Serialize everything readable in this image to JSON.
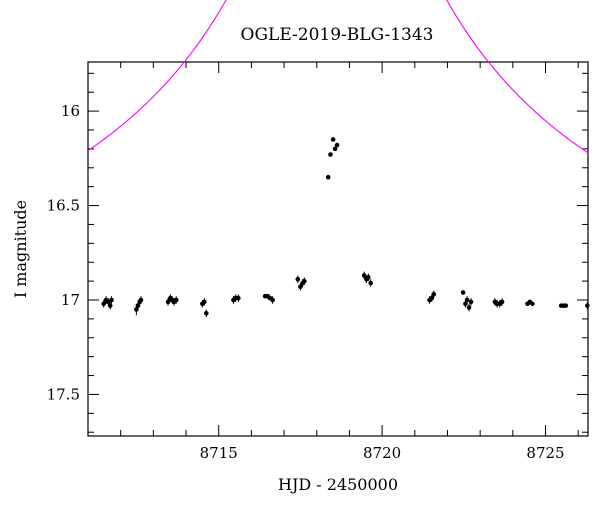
{
  "chart_data": {
    "type": "scatter",
    "title": "OGLE-2019-BLG-1343",
    "xlabel": "HJD - 2450000",
    "ylabel": "I magnitude",
    "xlim": [
      8711.0,
      8726.3
    ],
    "ylim": [
      17.72,
      15.74
    ],
    "y_inverted": true,
    "x_major_ticks": [
      8715,
      8720,
      8725
    ],
    "x_tick_labels": [
      "8715",
      "8720",
      "8725"
    ],
    "y_major_ticks": [
      16,
      16.5,
      17,
      17.5
    ],
    "y_tick_labels": [
      "16",
      "16.5",
      "17",
      "17.5"
    ],
    "grid": false,
    "colors": {
      "data": "#000000",
      "model": "#ff00ff"
    },
    "series": [
      {
        "kind": "points",
        "x": [
          8711.48,
          8711.55,
          8711.62,
          8711.68,
          8711.72,
          8712.48,
          8712.53,
          8712.58,
          8712.62,
          8713.45,
          8713.52,
          8713.58,
          8713.63,
          8713.7,
          8714.5,
          8714.56,
          8714.62,
          8715.45,
          8715.52,
          8715.6,
          8716.42,
          8716.5,
          8716.57,
          8716.65,
          8717.42,
          8717.5,
          8717.57,
          8717.62,
          8718.35,
          8718.42,
          8718.5,
          8718.56,
          8718.62,
          8719.45,
          8719.52,
          8719.58,
          8719.65,
          8721.45,
          8721.52,
          8721.58,
          8722.48,
          8722.55,
          8722.6,
          8722.66,
          8722.72,
          8723.45,
          8723.52,
          8723.6,
          8723.67,
          8724.45,
          8724.52,
          8724.6,
          8725.48,
          8725.55,
          8725.62,
          8726.28
        ],
        "y": [
          17.02,
          17.0,
          17.01,
          17.03,
          17.0,
          17.05,
          17.03,
          17.01,
          17.0,
          17.01,
          16.99,
          17.0,
          17.01,
          17.0,
          17.02,
          17.01,
          17.07,
          17.0,
          16.99,
          16.99,
          16.98,
          16.98,
          16.99,
          17.0,
          16.89,
          16.93,
          16.91,
          16.9,
          16.35,
          16.23,
          16.15,
          16.2,
          16.18,
          16.87,
          16.89,
          16.88,
          16.91,
          17.0,
          16.99,
          16.97,
          16.96,
          17.02,
          17.0,
          17.04,
          17.01,
          17.01,
          17.02,
          17.02,
          17.01,
          17.02,
          17.01,
          17.02,
          17.03,
          17.03,
          17.03,
          17.03
        ],
        "yerr": [
          0.02,
          0.02,
          0.02,
          0.02,
          0.02,
          0.03,
          0.02,
          0.02,
          0.02,
          0.02,
          0.02,
          0.02,
          0.02,
          0.02,
          0.02,
          0.02,
          0.02,
          0.02,
          0.02,
          0.02,
          0.01,
          0.01,
          0.01,
          0.02,
          0.02,
          0.02,
          0.02,
          0.02,
          0.01,
          0.01,
          0.01,
          0.01,
          0.01,
          0.02,
          0.02,
          0.02,
          0.02,
          0.02,
          0.02,
          0.02,
          0.01,
          0.02,
          0.02,
          0.02,
          0.02,
          0.02,
          0.02,
          0.02,
          0.02,
          0.01,
          0.01,
          0.01,
          0.01,
          0.01,
          0.01,
          0.02
        ]
      },
      {
        "kind": "model",
        "model": "point-source point-lens",
        "t0": 8718.6,
        "tE": 14.6,
        "u0": 0.0161,
        "I_baseline": 17.02
      }
    ]
  }
}
